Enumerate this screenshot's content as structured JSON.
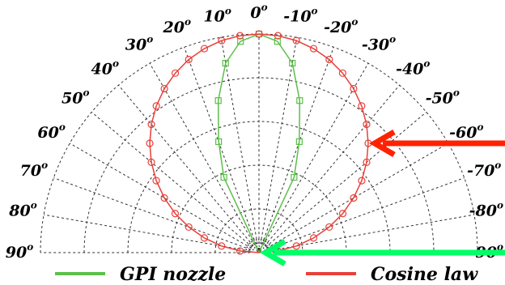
{
  "chart_data": {
    "type": "polar",
    "angle_ticks": [
      {
        "deg": 90,
        "label": "90",
        "sup": "o"
      },
      {
        "deg": 80,
        "label": "80",
        "sup": "o"
      },
      {
        "deg": 70,
        "label": "70",
        "sup": "o"
      },
      {
        "deg": 60,
        "label": "60",
        "sup": "o"
      },
      {
        "deg": 50,
        "label": "50",
        "sup": "o"
      },
      {
        "deg": 40,
        "label": "40",
        "sup": "o"
      },
      {
        "deg": 30,
        "label": "30",
        "sup": "o"
      },
      {
        "deg": 20,
        "label": "20",
        "sup": "o"
      },
      {
        "deg": 10,
        "label": "10",
        "sup": "o"
      },
      {
        "deg": 0,
        "label": "0",
        "sup": "o"
      },
      {
        "deg": -10,
        "label": "-10",
        "sup": "o"
      },
      {
        "deg": -20,
        "label": "-20",
        "sup": "o"
      },
      {
        "deg": -30,
        "label": "-30",
        "sup": "o"
      },
      {
        "deg": -40,
        "label": "-40",
        "sup": "o"
      },
      {
        "deg": -50,
        "label": "-50",
        "sup": "o"
      },
      {
        "deg": -60,
        "label": "-60",
        "sup": "o"
      },
      {
        "deg": -70,
        "label": "-70",
        "sup": "o"
      },
      {
        "deg": -80,
        "label": "-80",
        "sup": "o"
      },
      {
        "deg": -90,
        "label": "-90",
        "sup": "o"
      }
    ],
    "radial_range": [
      0,
      1
    ],
    "radial_rings": [
      0.2,
      0.4,
      0.6,
      0.8,
      1.0
    ],
    "grid": true,
    "series": [
      {
        "name": "GPI nozzle",
        "color": "#5cbf4a",
        "marker": "square",
        "angles": [
          -90,
          -85,
          -80,
          -75,
          -70,
          -65,
          -60,
          -55,
          -50,
          -45,
          -40,
          -35,
          -30,
          -25,
          -20,
          -15,
          -10,
          -5,
          0,
          5,
          10,
          15,
          20,
          25,
          30,
          35,
          40,
          45,
          50,
          55,
          60,
          65,
          70,
          75,
          80,
          85,
          90
        ],
        "values": [
          0,
          0,
          0,
          0,
          0,
          0,
          0,
          0,
          0,
          0,
          0,
          0,
          0,
          0.38,
          0.54,
          0.72,
          0.88,
          0.97,
          1.0,
          0.97,
          0.88,
          0.72,
          0.54,
          0.38,
          0,
          0,
          0,
          0,
          0,
          0,
          0,
          0,
          0,
          0,
          0,
          0,
          0
        ]
      },
      {
        "name": "Cosine law",
        "color": "#e8403a",
        "marker": "circle",
        "angles": [
          -90,
          -85,
          -80,
          -75,
          -70,
          -65,
          -60,
          -55,
          -50,
          -45,
          -40,
          -35,
          -30,
          -25,
          -20,
          -15,
          -10,
          -5,
          0,
          5,
          10,
          15,
          20,
          25,
          30,
          35,
          40,
          45,
          50,
          55,
          60,
          65,
          70,
          75,
          80,
          85,
          90
        ],
        "values": [
          0,
          0.087,
          0.174,
          0.259,
          0.342,
          0.423,
          0.5,
          0.574,
          0.643,
          0.707,
          0.766,
          0.819,
          0.866,
          0.906,
          0.94,
          0.966,
          0.985,
          0.996,
          1.0,
          0.996,
          0.985,
          0.966,
          0.94,
          0.906,
          0.866,
          0.819,
          0.766,
          0.707,
          0.643,
          0.574,
          0.5,
          0.423,
          0.342,
          0.259,
          0.174,
          0.087,
          0
        ]
      }
    ],
    "annotations": [
      {
        "type": "arrow",
        "color": "#00ff66",
        "target_series": "GPI nozzle",
        "at_deg": -30
      },
      {
        "type": "arrow",
        "color": "#ff2200",
        "target_series": "Cosine law",
        "at_deg": -45
      }
    ],
    "legend": {
      "placement": "bottom",
      "entries": [
        "GPI nozzle",
        "Cosine law"
      ]
    }
  }
}
